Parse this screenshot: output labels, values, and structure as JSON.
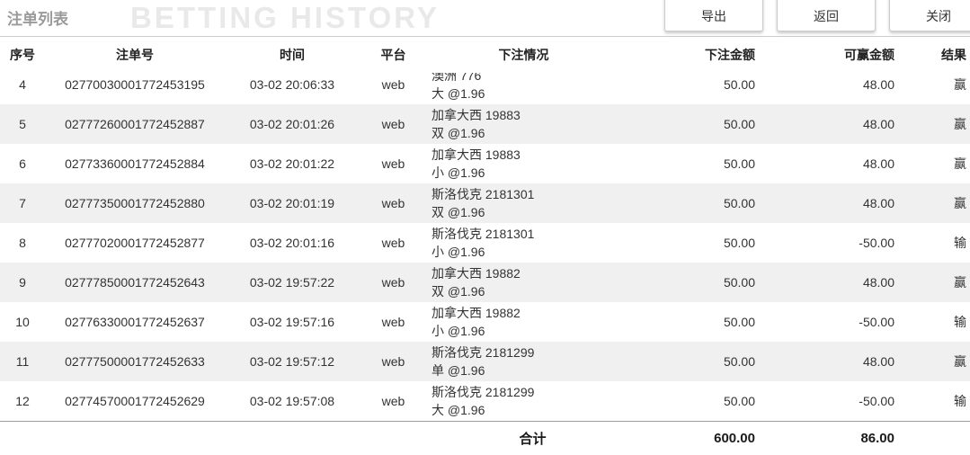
{
  "header": {
    "title": "注单列表",
    "watermark": "BETTING HISTORY",
    "buttons": {
      "export": "导出",
      "back": "返回",
      "close": "关闭"
    }
  },
  "colors": {
    "stripe": "#f0f0f0",
    "title_gray": "#9a9a9a",
    "watermark_gray": "#e9e9e9",
    "text": "#333333"
  },
  "table": {
    "columns": [
      "序号",
      "注单号",
      "时间",
      "平台",
      "下注情况",
      "下注金额",
      "可赢金额",
      "结果"
    ],
    "rows": [
      {
        "seq": "4",
        "bet_id": "02770030001772453195",
        "time": "03-02 20:06:33",
        "platform": "web",
        "detail_line1": "澳洲 776",
        "detail_line2": "大 @1.96",
        "amount": "50.00",
        "win": "48.00",
        "result": "赢"
      },
      {
        "seq": "5",
        "bet_id": "02777260001772452887",
        "time": "03-02 20:01:26",
        "platform": "web",
        "detail_line1": "加拿大西 19883",
        "detail_line2": "双 @1.96",
        "amount": "50.00",
        "win": "48.00",
        "result": "赢"
      },
      {
        "seq": "6",
        "bet_id": "02773360001772452884",
        "time": "03-02 20:01:22",
        "platform": "web",
        "detail_line1": "加拿大西 19883",
        "detail_line2": "小 @1.96",
        "amount": "50.00",
        "win": "48.00",
        "result": "赢"
      },
      {
        "seq": "7",
        "bet_id": "02777350001772452880",
        "time": "03-02 20:01:19",
        "platform": "web",
        "detail_line1": "斯洛伐克 2181301",
        "detail_line2": "双 @1.96",
        "amount": "50.00",
        "win": "48.00",
        "result": "赢"
      },
      {
        "seq": "8",
        "bet_id": "02777020001772452877",
        "time": "03-02 20:01:16",
        "platform": "web",
        "detail_line1": "斯洛伐克 2181301",
        "detail_line2": "小 @1.96",
        "amount": "50.00",
        "win": "-50.00",
        "result": "输"
      },
      {
        "seq": "9",
        "bet_id": "02777850001772452643",
        "time": "03-02 19:57:22",
        "platform": "web",
        "detail_line1": "加拿大西 19882",
        "detail_line2": "双 @1.96",
        "amount": "50.00",
        "win": "48.00",
        "result": "赢"
      },
      {
        "seq": "10",
        "bet_id": "02776330001772452637",
        "time": "03-02 19:57:16",
        "platform": "web",
        "detail_line1": "加拿大西 19882",
        "detail_line2": "小 @1.96",
        "amount": "50.00",
        "win": "-50.00",
        "result": "输"
      },
      {
        "seq": "11",
        "bet_id": "02777500001772452633",
        "time": "03-02 19:57:12",
        "platform": "web",
        "detail_line1": "斯洛伐克 2181299",
        "detail_line2": "单 @1.96",
        "amount": "50.00",
        "win": "48.00",
        "result": "赢"
      },
      {
        "seq": "12",
        "bet_id": "02774570001772452629",
        "time": "03-02 19:57:08",
        "platform": "web",
        "detail_line1": "斯洛伐克 2181299",
        "detail_line2": "大 @1.96",
        "amount": "50.00",
        "win": "-50.00",
        "result": "输"
      }
    ],
    "total": {
      "label": "合计",
      "amount": "600.00",
      "win": "86.00"
    }
  }
}
